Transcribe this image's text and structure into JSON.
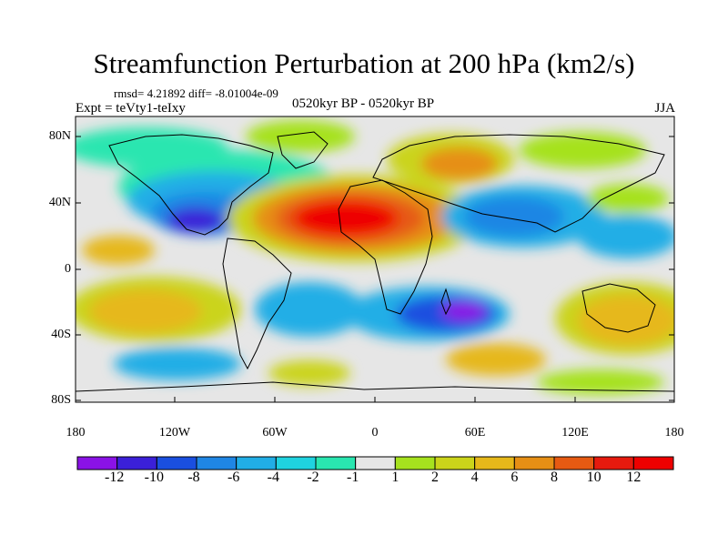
{
  "title": "Streamfunction Perturbation at 200 hPa (km2/s)",
  "stats": "rmsd= 4.21892 diff= -8.01004e-09",
  "experiment": "Expt = teVty1-teIxy",
  "period": "0520kyr BP - 0520kyr BP",
  "season": "JJA",
  "y_axis_labels": [
    "80N",
    "40N",
    "0",
    "40S",
    "80S"
  ],
  "x_axis_labels": [
    "180",
    "120W",
    "60W",
    "0",
    "60E",
    "120E",
    "180"
  ],
  "colorbar": {
    "labels": [
      "-12",
      "-10",
      "-8",
      "-6",
      "-4",
      "-2",
      "-1",
      "1",
      "2",
      "4",
      "6",
      "8",
      "10",
      "12"
    ],
    "colors": [
      "#8a12e6",
      "#3b20d8",
      "#1a4fe0",
      "#1f86e4",
      "#21aee6",
      "#1fd3e0",
      "#29e6b0",
      "#e6e6e6",
      "#a6e21e",
      "#cbd41a",
      "#e6b81a",
      "#e68f15",
      "#e65a12",
      "#e61a0e",
      "#ee0000"
    ]
  }
}
